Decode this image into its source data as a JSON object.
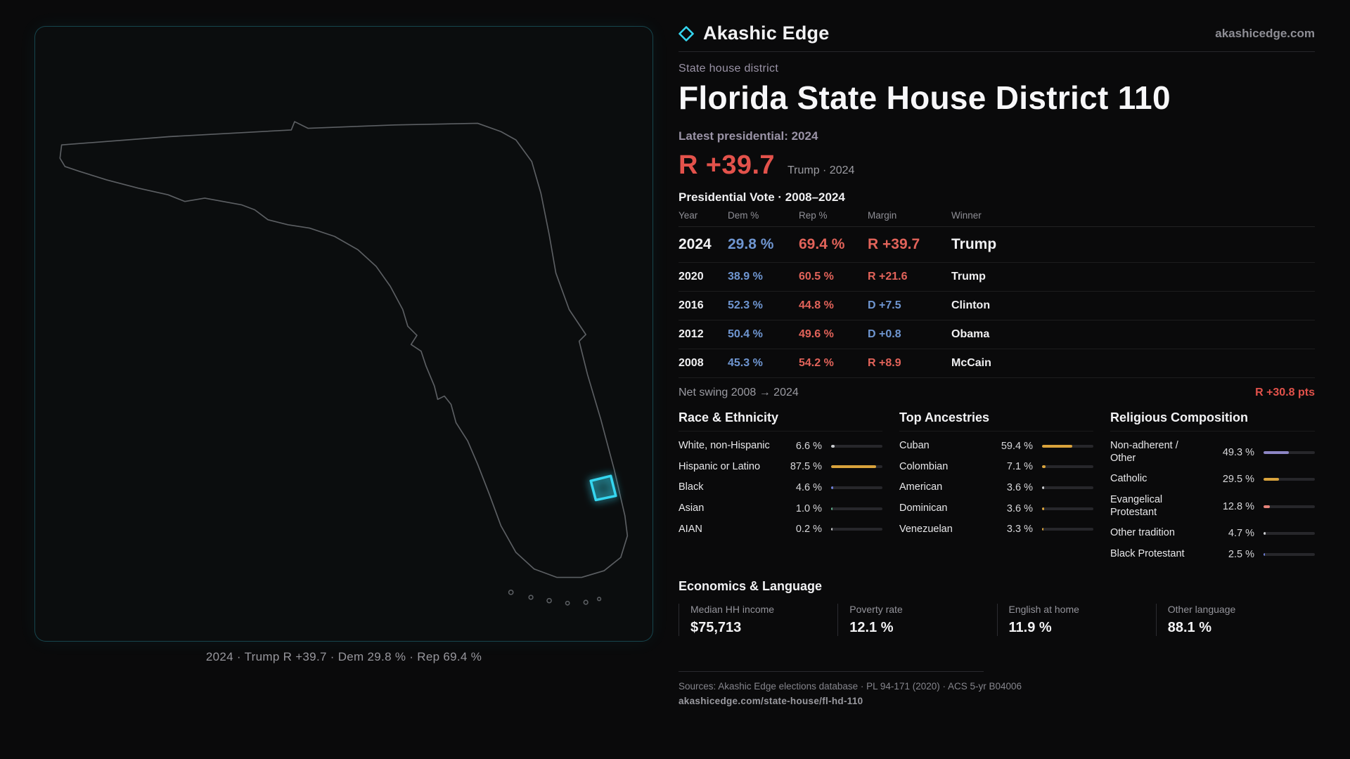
{
  "theme": {
    "background": "#0a0a0b",
    "accent_cyan": "#35d6f0",
    "dem_blue": "#6f96d1",
    "rep_red": "#e2635a",
    "margin_red": "#e3524b",
    "gold": "#d9a33c",
    "purple": "#8d86c5",
    "salmon": "#e5837a"
  },
  "brand": {
    "name": "Akashic Edge",
    "domain": "akashicedge.com",
    "icon": "diamond-icon"
  },
  "map": {
    "caption": "2024 · Trump R +39.7 · Dem 29.8 % · Rep 69.4 %",
    "marker": "district-110-highlight"
  },
  "header": {
    "kicker": "State house district",
    "title": "Florida State House District 110"
  },
  "latest": {
    "label": "Latest presidential: 2024",
    "margin": "R +39.7",
    "sub": "Trump · 2024"
  },
  "table": {
    "title": "Presidential Vote · 2008–2024",
    "columns": [
      "Year",
      "Dem %",
      "Rep %",
      "Margin",
      "Winner"
    ],
    "rows": [
      {
        "year": "2024",
        "dem": "29.8 %",
        "rep": "69.4 %",
        "margin": "R +39.7",
        "margin_party": "R",
        "winner": "Trump",
        "emphasis": true
      },
      {
        "year": "2020",
        "dem": "38.9 %",
        "rep": "60.5 %",
        "margin": "R +21.6",
        "margin_party": "R",
        "winner": "Trump",
        "emphasis": false
      },
      {
        "year": "2016",
        "dem": "52.3 %",
        "rep": "44.8 %",
        "margin": "D +7.5",
        "margin_party": "D",
        "winner": "Clinton",
        "emphasis": false
      },
      {
        "year": "2012",
        "dem": "50.4 %",
        "rep": "49.6 %",
        "margin": "D +0.8",
        "margin_party": "D",
        "winner": "Obama",
        "emphasis": false
      },
      {
        "year": "2008",
        "dem": "45.3 %",
        "rep": "54.2 %",
        "margin": "R +8.9",
        "margin_party": "R",
        "winner": "McCain",
        "emphasis": false
      }
    ]
  },
  "net_swing": {
    "label": "Net swing 2008 → 2024",
    "value": "R +30.8 pts"
  },
  "demographics": [
    {
      "title": "Race & Ethnicity",
      "rows": [
        {
          "label": "White, non-Hispanic",
          "value": "6.6 %",
          "pct": 6.6,
          "color": "#c9cbce"
        },
        {
          "label": "Hispanic or Latino",
          "value": "87.5 %",
          "pct": 87.5,
          "color": "#d9a33c"
        },
        {
          "label": "Black",
          "value": "4.6 %",
          "pct": 4.6,
          "color": "#6c7dd6"
        },
        {
          "label": "Asian",
          "value": "1.0 %",
          "pct": 1.0,
          "color": "#5fae8a"
        },
        {
          "label": "AIAN",
          "value": "0.2 %",
          "pct": 0.2,
          "color": "#c9cbce"
        }
      ]
    },
    {
      "title": "Top Ancestries",
      "rows": [
        {
          "label": "Cuban",
          "value": "59.4 %",
          "pct": 59.4,
          "color": "#d9a33c"
        },
        {
          "label": "Colombian",
          "value": "7.1 %",
          "pct": 7.1,
          "color": "#d9a33c"
        },
        {
          "label": "American",
          "value": "3.6 %",
          "pct": 3.6,
          "color": "#c9cbce"
        },
        {
          "label": "Dominican",
          "value": "3.6 %",
          "pct": 3.6,
          "color": "#d9a33c"
        },
        {
          "label": "Venezuelan",
          "value": "3.3 %",
          "pct": 3.3,
          "color": "#d9a33c"
        }
      ]
    },
    {
      "title": "Religious Composition",
      "rows": [
        {
          "label": "Non-adherent / Other",
          "value": "49.3 %",
          "pct": 49.3,
          "color": "#8d86c5"
        },
        {
          "label": "Catholic",
          "value": "29.5 %",
          "pct": 29.5,
          "color": "#d9a33c"
        },
        {
          "label": "Evangelical Protestant",
          "value": "12.8 %",
          "pct": 12.8,
          "color": "#e5837a"
        },
        {
          "label": "Other tradition",
          "value": "4.7 %",
          "pct": 4.7,
          "color": "#c9cbce"
        },
        {
          "label": "Black Protestant",
          "value": "2.5 %",
          "pct": 2.5,
          "color": "#6c7dd6"
        }
      ]
    }
  ],
  "economics": {
    "title": "Economics & Language",
    "stats": [
      {
        "label": "Median HH income",
        "value": "$75,713"
      },
      {
        "label": "Poverty rate",
        "value": "12.1 %"
      },
      {
        "label": "English at home",
        "value": "11.9 %"
      },
      {
        "label": "Other language",
        "value": "88.1 %"
      }
    ]
  },
  "footer": {
    "sources": "Sources: Akashic Edge elections database · PL 94-171 (2020) · ACS 5-yr B04006",
    "permalink": "akashicedge.com/state-house/fl-hd-110"
  }
}
